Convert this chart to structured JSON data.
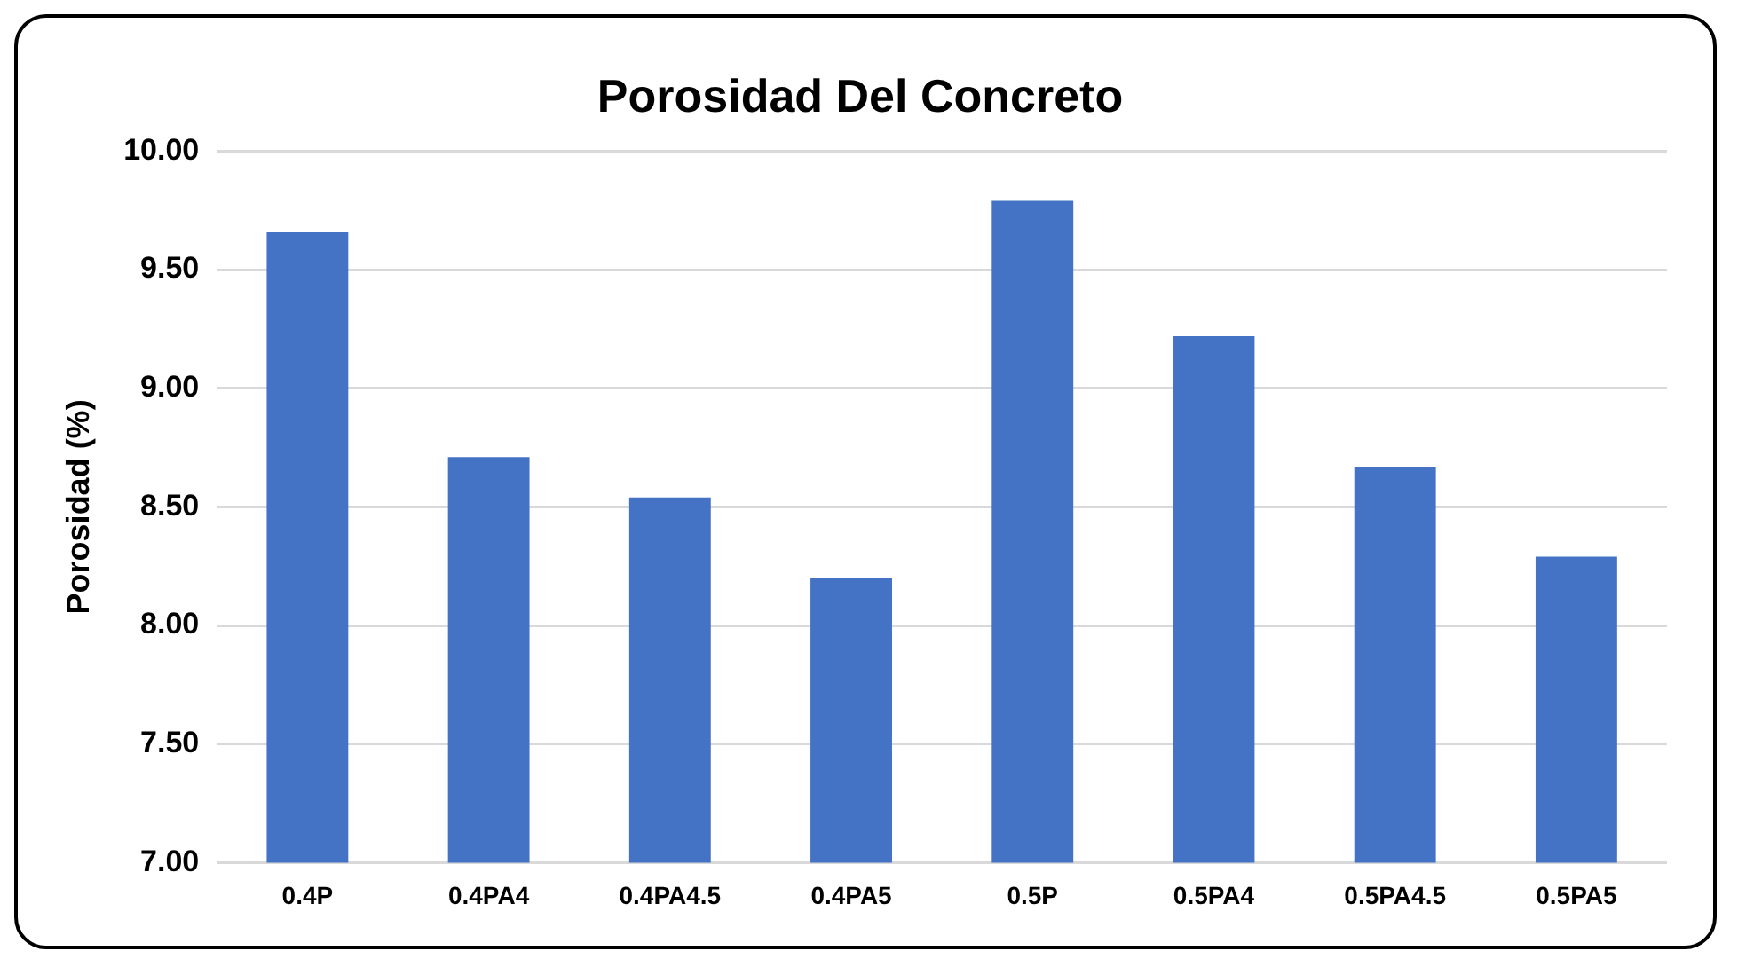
{
  "chart_data": {
    "type": "bar",
    "title": "Porosidad Del Concreto",
    "ylabel": "Porosidad (%)",
    "categories": [
      "0.4P",
      "0.4PA4",
      "0.4PA4.5",
      "0.4PA5",
      "0.5P",
      "0.5PA4",
      "0.5PA4.5",
      "0.5PA5"
    ],
    "values": [
      9.66,
      8.71,
      8.54,
      8.2,
      9.79,
      9.22,
      8.67,
      8.29
    ],
    "color": "#4472c4",
    "ylim": [
      7,
      10
    ],
    "yticks": [
      {
        "value": 7,
        "label": "7.00"
      },
      {
        "value": 7.5,
        "label": "7.50"
      },
      {
        "value": 8,
        "label": "8.00"
      },
      {
        "value": 8.5,
        "label": "8.50"
      },
      {
        "value": 9,
        "label": "9.00"
      },
      {
        "value": 9.5,
        "label": "9.50"
      },
      {
        "value": 10,
        "label": "10.00"
      }
    ],
    "grid": "y"
  }
}
